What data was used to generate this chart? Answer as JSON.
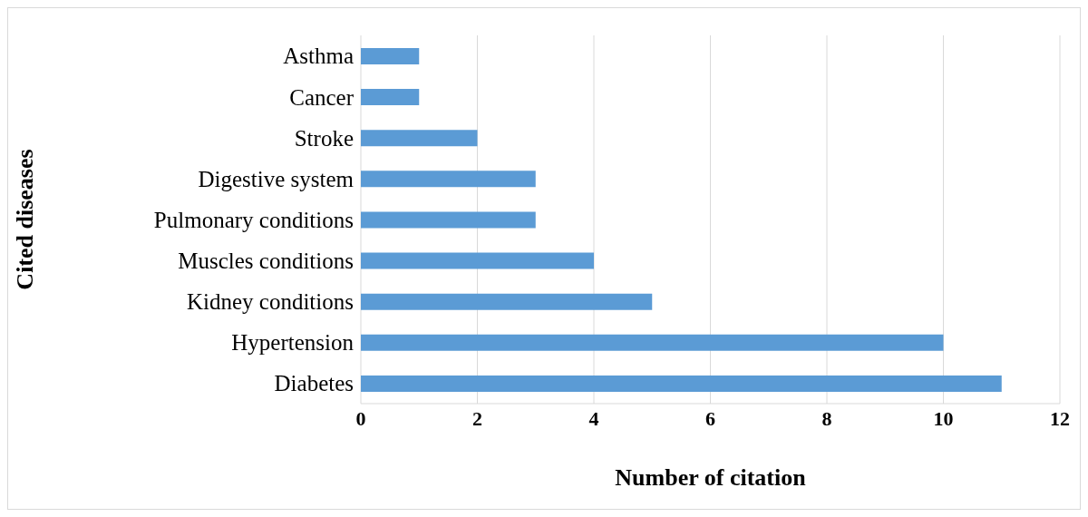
{
  "chart_data": {
    "type": "bar",
    "orientation": "horizontal",
    "categories": [
      "Asthma",
      "Cancer",
      "Stroke",
      "Digestive system",
      "Pulmonary conditions",
      "Muscles conditions",
      "Kidney conditions",
      "Hypertension",
      "Diabetes"
    ],
    "values": [
      1,
      1,
      2,
      3,
      3,
      4,
      5,
      10,
      11
    ],
    "color": "#5b9bd5",
    "xlim": [
      0,
      12
    ],
    "xticks": [
      0,
      2,
      4,
      6,
      8,
      10,
      12
    ],
    "xlabel": "Number of citation",
    "ylabel": "Cited diseases",
    "grid": "x"
  }
}
